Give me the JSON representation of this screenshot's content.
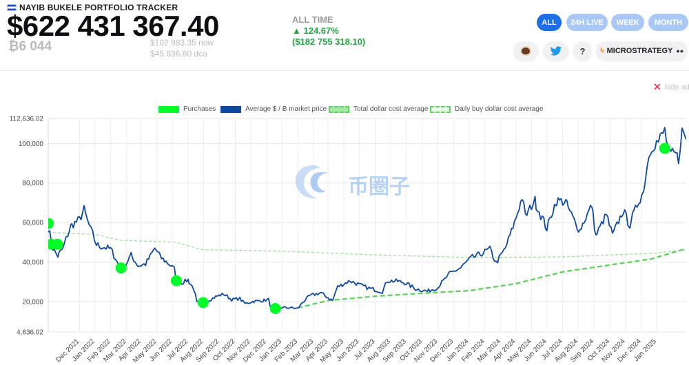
{
  "header": {
    "title": "NAYIB BUKELE PORTFOLIO TRACKER",
    "portfolio_value": "$622 431 367.40",
    "btc_amount": "₿6 044",
    "price_now": "$102 983.35 now",
    "price_dca": "$45 836.60 dca",
    "alltime_label": "ALL TIME",
    "alltime_change_pct": "▲ 124.67%",
    "alltime_change_usd": "($182 755 318.10)"
  },
  "tabs": [
    {
      "label": "ALL",
      "active": true
    },
    {
      "label": "24H LIVE",
      "active": false
    },
    {
      "label": "WEEK",
      "active": false
    },
    {
      "label": "MONTH",
      "active": false
    }
  ],
  "actions": {
    "microstrategy_label": "MICROSTRATEGY",
    "help_label": "?",
    "icons": [
      "coffee-icon",
      "twitter-icon",
      "help-icon",
      "lightning-icon"
    ]
  },
  "ads": {
    "hide_label": "hide ads"
  },
  "watermark": {
    "text": "币圈子"
  },
  "colors": {
    "accent": "#1e6ee6",
    "line": "#0d47a1",
    "purchase": "#00ff29",
    "dca": "#62d162",
    "positive": "#27a244"
  },
  "chart_data": {
    "type": "line",
    "legend": [
      {
        "name": "Purchases",
        "style": "marker",
        "color": "#00ff29"
      },
      {
        "name": "Average $ / Ƀ market price",
        "style": "solid",
        "color": "#0d47a1"
      },
      {
        "name": "Total dollar cost average",
        "style": "dashed",
        "color": "#62d162"
      },
      {
        "name": "Daily buy dollar cost average",
        "style": "dashed",
        "color": "#62d162"
      }
    ],
    "legend_position": "top-center",
    "grid": true,
    "x_tick_labels": [
      "Dec 2021",
      "Jan 2022",
      "Feb 2022",
      "Mar 2022",
      "Apr 2022",
      "May 2022",
      "Jun 2022",
      "Jul 2022",
      "Aug 2022",
      "Sep 2022",
      "Oct 2022",
      "Nov 2022",
      "Dec 2022",
      "Jan 2023",
      "Feb 2023",
      "Mar 2023",
      "Apr 2023",
      "May 2023",
      "Jun 2023",
      "Jul 2023",
      "Aug 2023",
      "Sep 2023",
      "Oct 2023",
      "Nov 2023",
      "Dec 2023",
      "Jan 2024",
      "Feb 2024",
      "Mar 2024",
      "Apr 2024",
      "May 2024",
      "Jun 2024",
      "Jul 2024",
      "Aug 2024",
      "Sep 2024",
      "Oct 2024",
      "Nov 2024",
      "Dec 2024",
      "Jan 2025"
    ],
    "y_tick_labels": [
      "4,636.02",
      "20,000",
      "40,000",
      "60,000",
      "80,000",
      "100,000",
      "112,636.02"
    ],
    "y_ticks": [
      4636.02,
      20000,
      40000,
      60000,
      80000,
      100000,
      112636.02
    ],
    "ylim": [
      4636.02,
      112636.02
    ],
    "xlim": [
      "2021-09-01",
      "2025-01-28"
    ],
    "series": [
      {
        "name": "Average $ / Ƀ market price",
        "points": [
          [
            "2021-09-01",
            57500
          ],
          [
            "2021-09-10",
            47000
          ],
          [
            "2021-09-20",
            43000
          ],
          [
            "2021-10-01",
            47500
          ],
          [
            "2021-10-15",
            58000
          ],
          [
            "2021-11-01",
            61500
          ],
          [
            "2021-11-10",
            66500
          ],
          [
            "2021-11-20",
            58500
          ],
          [
            "2021-11-27",
            54000
          ],
          [
            "2021-12-04",
            49000
          ],
          [
            "2021-12-10",
            48000
          ],
          [
            "2021-12-20",
            47500
          ],
          [
            "2022-01-01",
            46500
          ],
          [
            "2022-01-10",
            42000
          ],
          [
            "2022-01-21",
            36500
          ],
          [
            "2022-01-28",
            37500
          ],
          [
            "2022-02-10",
            43500
          ],
          [
            "2022-02-24",
            38000
          ],
          [
            "2022-03-10",
            39000
          ],
          [
            "2022-03-28",
            47000
          ],
          [
            "2022-04-10",
            42000
          ],
          [
            "2022-04-25",
            39000
          ],
          [
            "2022-05-05",
            36500
          ],
          [
            "2022-05-09",
            30500
          ],
          [
            "2022-05-20",
            29500
          ],
          [
            "2022-06-01",
            31000
          ],
          [
            "2022-06-12",
            26500
          ],
          [
            "2022-06-18",
            19500
          ],
          [
            "2022-06-30",
            19500
          ],
          [
            "2022-07-10",
            20500
          ],
          [
            "2022-07-25",
            22500
          ],
          [
            "2022-08-10",
            23800
          ],
          [
            "2022-08-25",
            21000
          ],
          [
            "2022-09-10",
            21500
          ],
          [
            "2022-09-20",
            19000
          ],
          [
            "2022-10-05",
            20000
          ],
          [
            "2022-10-25",
            20500
          ],
          [
            "2022-11-05",
            21000
          ],
          [
            "2022-11-09",
            17000
          ],
          [
            "2022-11-18",
            16700
          ],
          [
            "2022-12-01",
            17000
          ],
          [
            "2022-12-20",
            16800
          ],
          [
            "2023-01-01",
            16500
          ],
          [
            "2023-01-14",
            20500
          ],
          [
            "2023-01-25",
            23000
          ],
          [
            "2023-02-15",
            24500
          ],
          [
            "2023-03-10",
            20500
          ],
          [
            "2023-03-20",
            27500
          ],
          [
            "2023-04-14",
            30500
          ],
          [
            "2023-05-01",
            28500
          ],
          [
            "2023-05-20",
            26800
          ],
          [
            "2023-06-15",
            25000
          ],
          [
            "2023-06-25",
            30500
          ],
          [
            "2023-07-15",
            30300
          ],
          [
            "2023-08-01",
            29300
          ],
          [
            "2023-08-18",
            26500
          ],
          [
            "2023-09-11",
            25200
          ],
          [
            "2023-10-01",
            27000
          ],
          [
            "2023-10-24",
            34000
          ],
          [
            "2023-11-15",
            37000
          ],
          [
            "2023-12-05",
            42000
          ],
          [
            "2023-12-20",
            43500
          ],
          [
            "2024-01-11",
            46500
          ],
          [
            "2024-01-23",
            39500
          ],
          [
            "2024-02-10",
            47000
          ],
          [
            "2024-02-28",
            60000
          ],
          [
            "2024-03-14",
            73000
          ],
          [
            "2024-03-20",
            63000
          ],
          [
            "2024-04-08",
            71000
          ],
          [
            "2024-05-01",
            57000
          ],
          [
            "2024-05-20",
            71000
          ],
          [
            "2024-06-07",
            70500
          ],
          [
            "2024-06-24",
            60500
          ],
          [
            "2024-07-05",
            56000
          ],
          [
            "2024-07-28",
            69000
          ],
          [
            "2024-08-05",
            53000
          ],
          [
            "2024-08-25",
            64000
          ],
          [
            "2024-09-06",
            53500
          ],
          [
            "2024-09-27",
            66000
          ],
          [
            "2024-10-10",
            59000
          ],
          [
            "2024-10-30",
            72500
          ],
          [
            "2024-11-06",
            75500
          ],
          [
            "2024-11-13",
            90000
          ],
          [
            "2024-11-22",
            99000
          ],
          [
            "2024-12-05",
            101000
          ],
          [
            "2024-12-17",
            106500
          ],
          [
            "2024-12-26",
            94000
          ],
          [
            "2025-01-08",
            94500
          ],
          [
            "2025-01-13",
            92000
          ],
          [
            "2025-01-20",
            106000
          ],
          [
            "2025-01-25",
            104500
          ],
          [
            "2025-01-28",
            102000
          ]
        ]
      },
      {
        "name": "Total dollar cost average",
        "points": [
          [
            "2023-01-01",
            16800
          ],
          [
            "2023-03-01",
            20500
          ],
          [
            "2023-06-01",
            22700
          ],
          [
            "2023-09-01",
            24200
          ],
          [
            "2023-12-01",
            25500
          ],
          [
            "2024-03-01",
            29000
          ],
          [
            "2024-06-01",
            35000
          ],
          [
            "2024-09-01",
            38500
          ],
          [
            "2024-11-20",
            41500
          ],
          [
            "2025-01-28",
            46800
          ]
        ]
      },
      {
        "name": "Daily buy dollar cost average",
        "points": [
          [
            "2021-09-01",
            55000
          ],
          [
            "2021-12-01",
            54000
          ],
          [
            "2022-01-21",
            51000
          ],
          [
            "2022-05-09",
            50000
          ],
          [
            "2022-06-30",
            46200
          ],
          [
            "2022-11-18",
            45600
          ],
          [
            "2023-06-01",
            43600
          ],
          [
            "2023-12-01",
            42300
          ],
          [
            "2024-06-01",
            42600
          ],
          [
            "2024-12-01",
            44500
          ],
          [
            "2025-01-28",
            46300
          ]
        ]
      }
    ],
    "purchases": [
      [
        "2021-09-01",
        59500
      ],
      [
        "2021-09-07",
        49000
      ],
      [
        "2021-09-19",
        49000
      ],
      [
        "2022-01-21",
        37000
      ],
      [
        "2022-05-09",
        30500
      ],
      [
        "2022-06-30",
        19500
      ],
      [
        "2022-11-18",
        16500
      ],
      [
        "2024-12-17",
        97500
      ]
    ]
  }
}
